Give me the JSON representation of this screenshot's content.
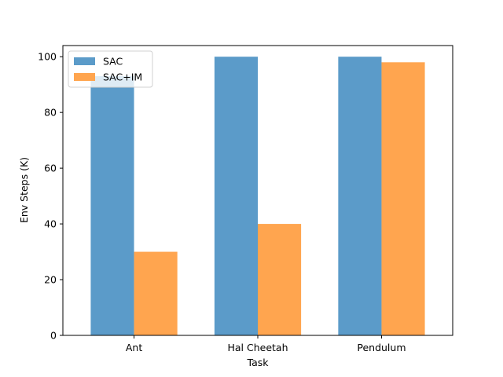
{
  "chart_data": {
    "type": "bar",
    "title": "",
    "xlabel": "Task",
    "ylabel": "Env Steps (K)",
    "categories": [
      "Ant",
      "Hal Cheetah",
      "Pendulum"
    ],
    "series": [
      {
        "name": "SAC",
        "values": [
          93,
          100,
          100
        ],
        "color": "#5b9bc9"
      },
      {
        "name": "SAC+IM",
        "values": [
          30,
          40,
          98
        ],
        "color": "#ffa54f"
      }
    ],
    "ylim": [
      0,
      104
    ],
    "yticks": [
      0,
      20,
      40,
      60,
      80,
      100
    ],
    "grid": false,
    "legend_position": "top-left"
  }
}
